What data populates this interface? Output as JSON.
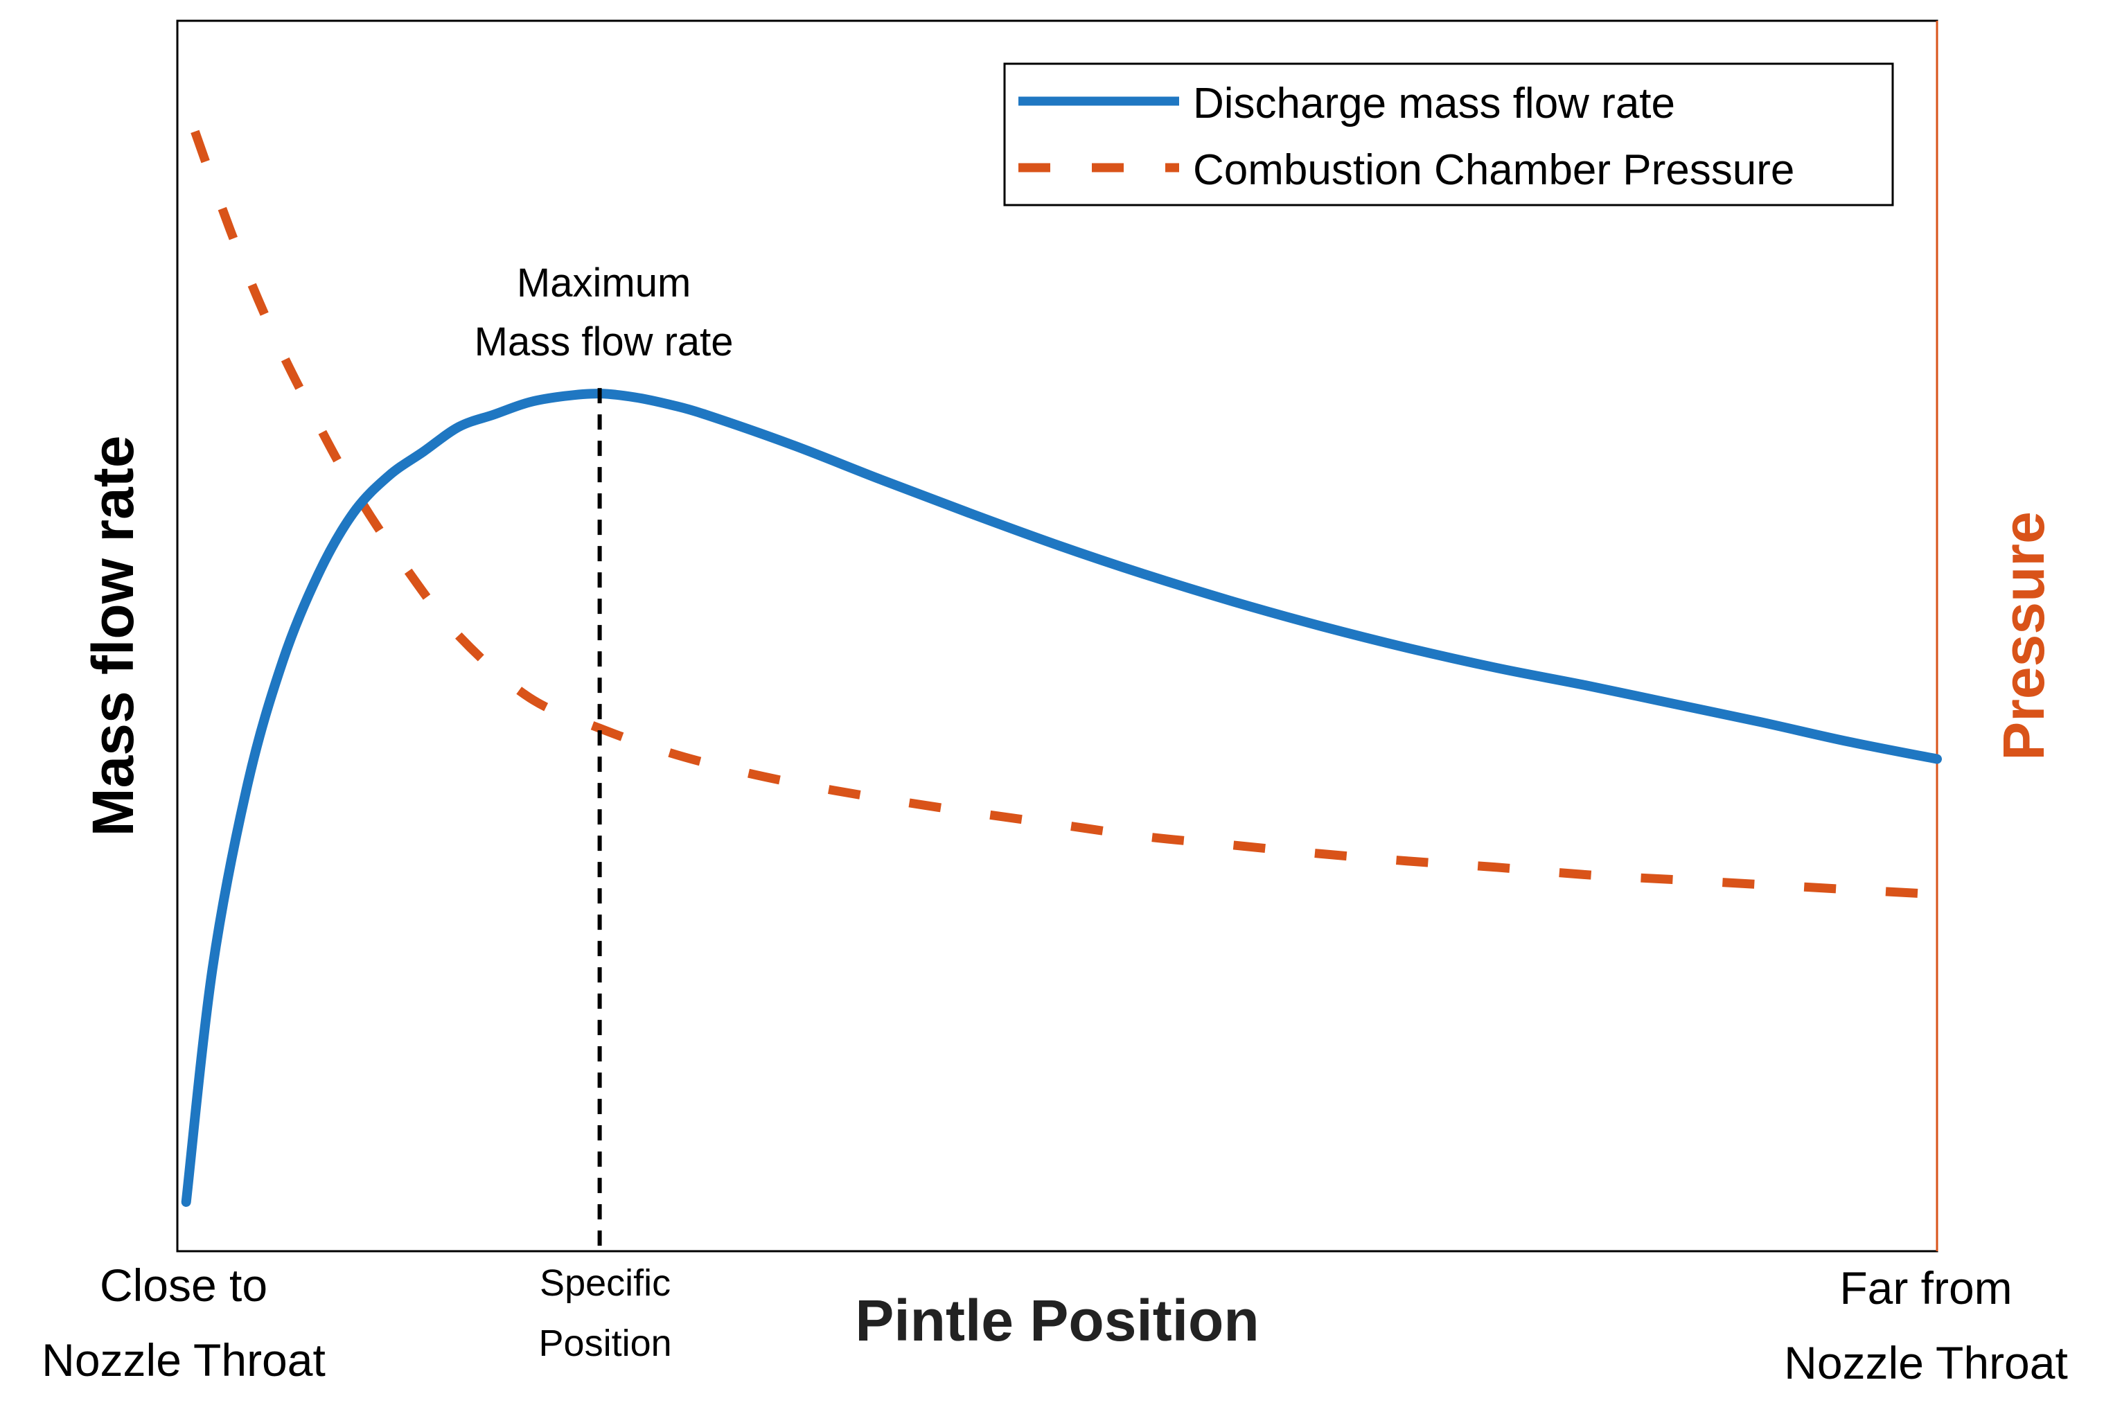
{
  "chart_data": {
    "type": "line",
    "title": "",
    "xlabel": "Pintle Position",
    "ylabel_left": "Mass flow rate",
    "ylabel_right": "Pressure",
    "xlim": [
      0,
      1
    ],
    "ylim": [
      0,
      1
    ],
    "grid": false,
    "legend_position": "top-right",
    "x_tick_labels": {
      "left": [
        "Close to",
        "Nozzle Throat"
      ],
      "marker": [
        "Specific",
        "Position"
      ],
      "right": [
        "Far from",
        "Nozzle Throat"
      ]
    },
    "marker_x": 0.24,
    "annotation": [
      "Maximum",
      "Mass flow rate"
    ],
    "colors": {
      "mass_flow": "#1f77c2",
      "pressure": "#d95319",
      "axis": "#000000",
      "right_axis": "#d95319"
    },
    "series": [
      {
        "name": "Discharge mass flow rate",
        "style": "solid",
        "x": [
          0.005,
          0.02,
          0.04,
          0.06,
          0.08,
          0.1,
          0.12,
          0.14,
          0.16,
          0.18,
          0.2,
          0.22,
          0.24,
          0.26,
          0.28,
          0.3,
          0.35,
          0.4,
          0.45,
          0.5,
          0.55,
          0.6,
          0.65,
          0.7,
          0.75,
          0.8,
          0.85,
          0.9,
          0.95,
          1.0
        ],
        "values": [
          0.04,
          0.23,
          0.38,
          0.48,
          0.55,
          0.6,
          0.63,
          0.65,
          0.67,
          0.68,
          0.69,
          0.695,
          0.697,
          0.694,
          0.688,
          0.68,
          0.655,
          0.627,
          0.6,
          0.574,
          0.55,
          0.528,
          0.508,
          0.49,
          0.474,
          0.46,
          0.445,
          0.43,
          0.414,
          0.4
        ]
      },
      {
        "name": "Combustion Chamber Pressure",
        "style": "dashed",
        "x": [
          0.01,
          0.03,
          0.05,
          0.07,
          0.1,
          0.13,
          0.16,
          0.2,
          0.24,
          0.28,
          0.32,
          0.36,
          0.4,
          0.45,
          0.5,
          0.55,
          0.6,
          0.65,
          0.7,
          0.75,
          0.8,
          0.85,
          0.9,
          0.95,
          1.0
        ],
        "values": [
          0.91,
          0.83,
          0.76,
          0.7,
          0.62,
          0.555,
          0.5,
          0.45,
          0.425,
          0.405,
          0.39,
          0.378,
          0.368,
          0.357,
          0.347,
          0.337,
          0.33,
          0.323,
          0.317,
          0.312,
          0.306,
          0.302,
          0.298,
          0.294,
          0.29
        ]
      }
    ]
  }
}
